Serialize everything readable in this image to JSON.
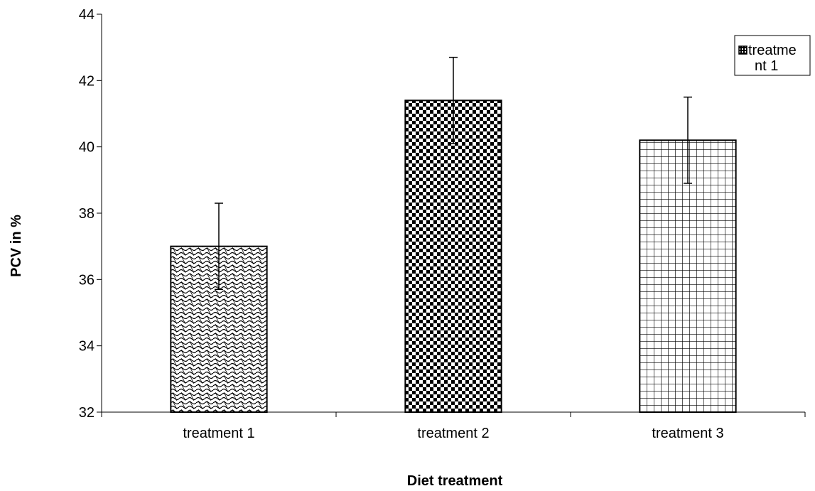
{
  "chart_data": {
    "type": "bar",
    "categories": [
      "treatment 1",
      "treatment 2",
      "treatment 3"
    ],
    "values": [
      37.0,
      41.4,
      40.2
    ],
    "error_bars": [
      {
        "low": 35.7,
        "high": 38.3
      },
      {
        "low": 40.1,
        "high": 42.7
      },
      {
        "low": 38.9,
        "high": 41.5
      }
    ],
    "patterns": [
      "wave",
      "checker",
      "grid"
    ],
    "title": "",
    "xlabel": "Diet treatment",
    "ylabel": "PCV in %",
    "ylim": [
      32,
      44
    ],
    "yticks": [
      "32",
      "34",
      "36",
      "38",
      "40",
      "42",
      "44"
    ],
    "grid": false,
    "legend": {
      "position": "top-right",
      "entries": [
        {
          "line1": "treatme",
          "line2": "nt 1"
        }
      ]
    }
  }
}
